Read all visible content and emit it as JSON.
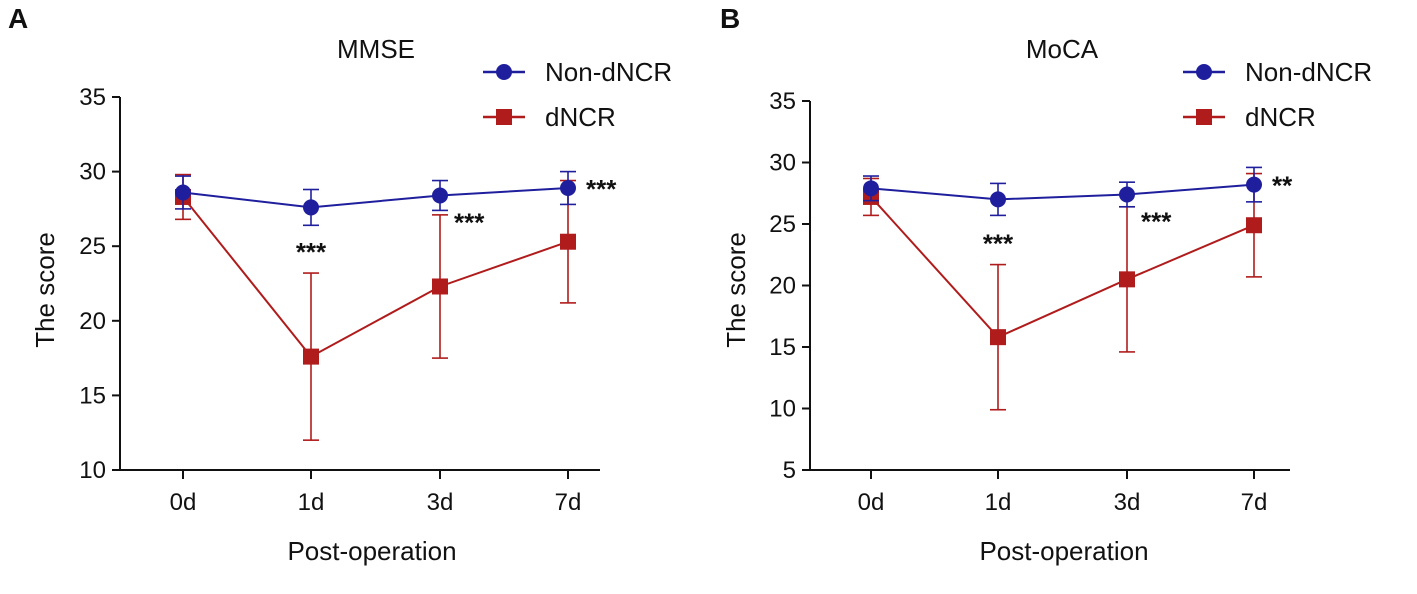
{
  "chart_data": [
    {
      "type": "line",
      "panel": "A",
      "title": "MMSE",
      "xlabel": "Post-operation",
      "ylabel": "The score",
      "categories": [
        "0d",
        "1d",
        "3d",
        "7d"
      ],
      "ylim": [
        10,
        35
      ],
      "yticks": [
        10,
        15,
        20,
        25,
        30,
        35
      ],
      "grid": false,
      "legend": "top-right",
      "series": [
        {
          "name": "Non-dNCR",
          "color": "#1f1f9e",
          "marker": "circle",
          "values": [
            28.6,
            27.6,
            28.4,
            28.9
          ],
          "errors": [
            1.1,
            1.2,
            1.0,
            1.1
          ]
        },
        {
          "name": "dNCR",
          "color": "#b01c1c",
          "marker": "square",
          "values": [
            28.3,
            17.6,
            22.3,
            25.3
          ],
          "errors": [
            1.5,
            5.6,
            4.8,
            4.1
          ]
        }
      ],
      "annotations": [
        {
          "category": "1d",
          "text": "***"
        },
        {
          "category": "3d",
          "text": "***"
        },
        {
          "category": "7d",
          "text": "***"
        }
      ]
    },
    {
      "type": "line",
      "panel": "B",
      "title": "MoCA",
      "xlabel": "Post-operation",
      "ylabel": "The score",
      "categories": [
        "0d",
        "1d",
        "3d",
        "7d"
      ],
      "ylim": [
        5,
        35
      ],
      "yticks": [
        5,
        10,
        15,
        20,
        25,
        30,
        35
      ],
      "grid": false,
      "legend": "top-right",
      "series": [
        {
          "name": "Non-dNCR",
          "color": "#1f1f9e",
          "marker": "circle",
          "values": [
            27.9,
            27.0,
            27.4,
            28.2
          ],
          "errors": [
            1.0,
            1.3,
            1.0,
            1.4
          ]
        },
        {
          "name": "dNCR",
          "color": "#b01c1c",
          "marker": "square",
          "values": [
            27.2,
            15.8,
            20.5,
            24.9
          ],
          "errors": [
            1.5,
            5.9,
            5.9,
            4.2
          ]
        }
      ],
      "annotations": [
        {
          "category": "1d",
          "text": "***"
        },
        {
          "category": "3d",
          "text": "***"
        },
        {
          "category": "7d",
          "text": "**"
        }
      ]
    }
  ]
}
